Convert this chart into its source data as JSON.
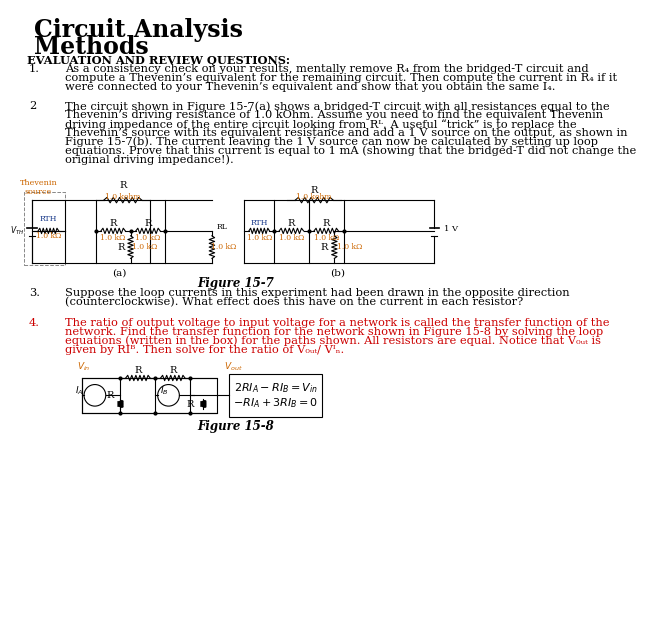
{
  "title_line1": "Circuit Analysis",
  "title_line2": "Methods",
  "section_header": "EVALUATION AND REVIEW QUESTIONS:",
  "q1_num": "1.",
  "q1_lines": [
    "As a consistency check on your results, mentally remove R₄ from the bridged-T circuit and",
    "compute a Thevenin’s equivalent for the remaining circuit. Then compute the current in R₄ if it",
    "were connected to your Thevenin’s equivalent and show that you obtain the same I₄."
  ],
  "q2_num": "2",
  "q2_lines": [
    "The circuit shown in Figure 15-7(a) shows a bridged-T circuit with all resistances equal to the",
    "Thevenin’s driving resistance of 1.0 kOhm. Assume you need to find the equivalent Thevenin",
    "driving impedance of the entire circuit looking from Rᴸ. A useful “trick” is to replace the",
    "Thevenin’s source with its equivalent resistance and add a 1 V source on the output, as shown in",
    "Figure 15-7(b). The current leaving the 1 V source can now be calculated by setting up loop",
    "equations. Prove that this current is equal to 1 mA (showing that the bridged-T did not change the",
    "original driving impedance!)."
  ],
  "q3_num": "3.",
  "q3_lines": [
    "Suppose the loop currents in this experiment had been drawn in the opposite direction",
    "(counterclockwise). What effect does this have on the current in each resistor?"
  ],
  "q4_num": "4.",
  "q4_lines": [
    "The ratio of output voltage to input voltage for a network is called the transfer function of the",
    "network. Find the transfer function for the network shown in Figure 15-8 by solving the loop",
    "equations (written in the box) for the paths shown. All resistors are equal. Notice that V₀ᵤₜ is",
    "given by RIᴮ. Then solve for the ratio of V₀ᵤₜ/ Vᴵₙ."
  ],
  "fig15_7_caption": "Figure 15-7",
  "fig15_8_caption": "Figure 15-8",
  "bg_color": "#ffffff",
  "text_color": "#000000",
  "title_color": "#000000",
  "orange_color": "#cc6600",
  "blue_color": "#1a3a8a"
}
